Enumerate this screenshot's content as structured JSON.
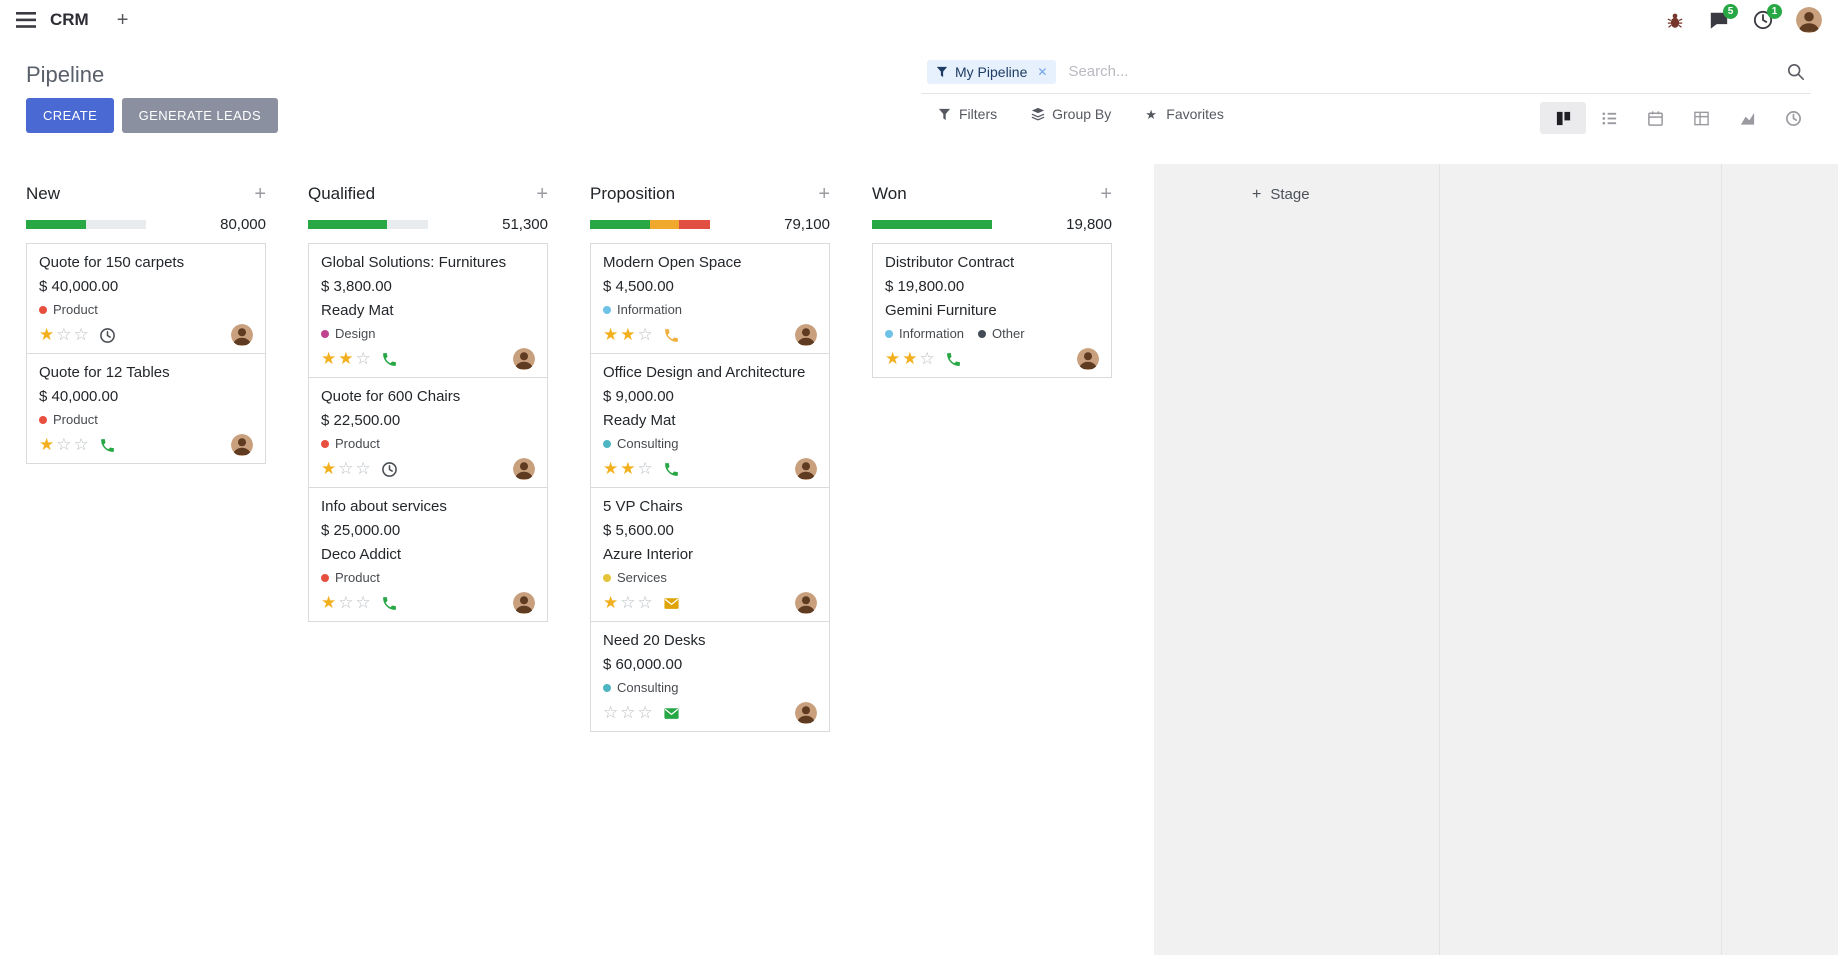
{
  "colors": {
    "create_button": "#4a69d2",
    "generate_button": "#8b90a0",
    "badge_green": "#28a745",
    "star_gold": "#f2b01e",
    "facet_bg": "#e7f1fd",
    "facet_text": "#1e3c64"
  },
  "icons": {
    "plus": "+",
    "facet_remove": "✕",
    "favorites_star": "★",
    "star_filled": "★",
    "star_empty": "☆"
  },
  "navbar": {
    "app": "CRM",
    "messages_badge": "5",
    "activities_badge": "1"
  },
  "panel": {
    "title": "Pipeline",
    "facet_label": "My Pipeline",
    "search_placeholder": "Search...",
    "create_label": "CREATE",
    "generate_label": "GENERATE LEADS",
    "filters_label": "Filters",
    "group_by_label": "Group By",
    "favorites_label": "Favorites"
  },
  "views": [
    {
      "name": "kanban",
      "active": true
    },
    {
      "name": "list",
      "active": false
    },
    {
      "name": "calendar",
      "active": false
    },
    {
      "name": "pivot",
      "active": false
    },
    {
      "name": "graph",
      "active": false
    },
    {
      "name": "activity",
      "active": false
    }
  ],
  "board": {
    "add_stage_label": "Stage",
    "columns": [
      {
        "title": "New",
        "counter": "80,000",
        "progress": [
          {
            "color": "#28a745",
            "pct": 50
          }
        ],
        "cards": [
          {
            "title": "Quote for 150 carpets",
            "amount": "$ 40,000.00",
            "partner": "",
            "tags": [
              {
                "label": "Product",
                "color": "#e7503e"
              }
            ],
            "stars": 1,
            "activity": {
              "icon": "clock",
              "color": "#4a4f54"
            }
          },
          {
            "title": "Quote for 12 Tables",
            "amount": "$ 40,000.00",
            "partner": "",
            "tags": [
              {
                "label": "Product",
                "color": "#e7503e"
              }
            ],
            "stars": 1,
            "activity": {
              "icon": "phone",
              "color": "#28a745"
            }
          }
        ]
      },
      {
        "title": "Qualified",
        "counter": "51,300",
        "progress": [
          {
            "color": "#28a745",
            "pct": 66
          }
        ],
        "cards": [
          {
            "title": "Global Solutions: Furnitures",
            "amount": "$ 3,800.00",
            "partner": "Ready Mat",
            "tags": [
              {
                "label": "Design",
                "color": "#c0438f"
              }
            ],
            "stars": 2,
            "activity": {
              "icon": "phone",
              "color": "#28a745"
            }
          },
          {
            "title": "Quote for 600 Chairs",
            "amount": "$ 22,500.00",
            "partner": "",
            "tags": [
              {
                "label": "Product",
                "color": "#e7503e"
              }
            ],
            "stars": 1,
            "activity": {
              "icon": "clock",
              "color": "#4a4f54"
            }
          },
          {
            "title": "Info about services",
            "amount": "$ 25,000.00",
            "partner": "Deco Addict",
            "tags": [
              {
                "label": "Product",
                "color": "#e7503e"
              }
            ],
            "stars": 1,
            "activity": {
              "icon": "phone",
              "color": "#28a745"
            }
          }
        ]
      },
      {
        "title": "Proposition",
        "counter": "79,100",
        "progress": [
          {
            "color": "#28a745",
            "pct": 50
          },
          {
            "color": "#f0a92c",
            "pct": 24
          },
          {
            "color": "#e04f42",
            "pct": 26
          }
        ],
        "cards": [
          {
            "title": "Modern Open Space",
            "amount": "$ 4,500.00",
            "partner": "",
            "tags": [
              {
                "label": "Information",
                "color": "#6ec2e8"
              }
            ],
            "stars": 2,
            "activity": {
              "icon": "phone",
              "color": "#eeb041"
            }
          },
          {
            "title": "Office Design and Architecture",
            "amount": "$ 9,000.00",
            "partner": "Ready Mat",
            "tags": [
              {
                "label": "Consulting",
                "color": "#4db6c2"
              }
            ],
            "stars": 2,
            "activity": {
              "icon": "phone",
              "color": "#28a745"
            }
          },
          {
            "title": "5 VP Chairs",
            "amount": "$ 5,600.00",
            "partner": "Azure Interior",
            "tags": [
              {
                "label": "Services",
                "color": "#e5c43a"
              }
            ],
            "stars": 1,
            "activity": {
              "icon": "envelope",
              "color": "#dfa406"
            }
          },
          {
            "title": "Need 20 Desks",
            "amount": "$ 60,000.00",
            "partner": "",
            "tags": [
              {
                "label": "Consulting",
                "color": "#4db6c2"
              }
            ],
            "stars": 0,
            "activity": {
              "icon": "envelope",
              "color": "#28a745"
            }
          }
        ]
      },
      {
        "title": "Won",
        "counter": "19,800",
        "progress": [
          {
            "color": "#28a745",
            "pct": 100
          }
        ],
        "cards": [
          {
            "title": "Distributor Contract",
            "amount": "$ 19,800.00",
            "partner": "Gemini Furniture",
            "tags": [
              {
                "label": "Information",
                "color": "#6ec2e8"
              },
              {
                "label": "Other",
                "color": "#434b56"
              }
            ],
            "stars": 2,
            "activity": {
              "icon": "phone",
              "color": "#28a745"
            }
          }
        ]
      }
    ]
  }
}
